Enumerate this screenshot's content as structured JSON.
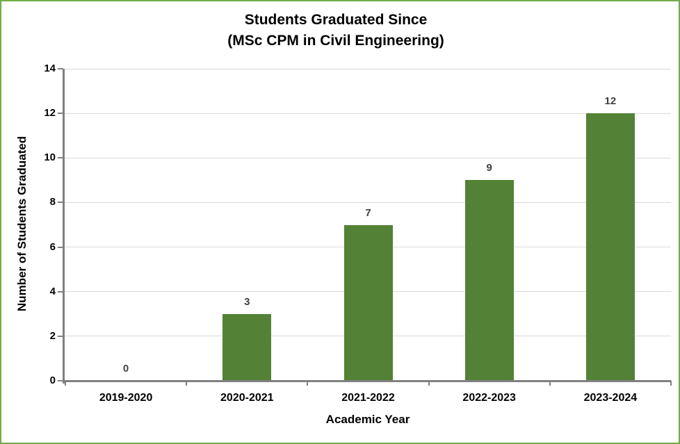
{
  "chart_data": {
    "type": "bar",
    "title_lines": [
      "Students Graduated Since",
      "(MSc CPM in Civil Engineering)"
    ],
    "categories": [
      "2019-2020",
      "2020-2021",
      "2021-2022",
      "2022-2023",
      "2023-2024"
    ],
    "values": [
      0,
      3,
      7,
      9,
      12
    ],
    "data_labels": [
      "0",
      "3",
      "7",
      "9",
      "12"
    ],
    "xlabel": "Academic Year",
    "ylabel": "Number of Students Graduated",
    "ylim": [
      0,
      14
    ],
    "ytick_step": 2,
    "yticks": [
      0,
      2,
      4,
      6,
      8,
      10,
      12,
      14
    ],
    "grid": true,
    "legend": "none",
    "bar_color": "#538135"
  },
  "style_colors": {
    "frame_border": "#70AD47",
    "background": "#FFFFFF",
    "axis_line": "#808080",
    "gridline": "#D9D9D9",
    "axis_text": "#000000",
    "data_label_text": "#404040"
  }
}
